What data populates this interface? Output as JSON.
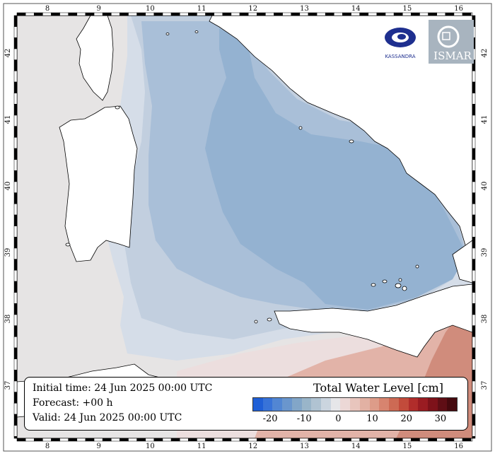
{
  "map": {
    "lon_ticks": [
      "8",
      "9",
      "10",
      "11",
      "12",
      "13",
      "14",
      "15",
      "16"
    ],
    "lat_ticks": [
      "37",
      "38",
      "39",
      "40",
      "41",
      "42"
    ],
    "colors": {
      "land": "#ffffff",
      "out_of_domain": "#e6e4e4",
      "sea_neutral": "#d5dde8",
      "sea_light": "#c2cfdf",
      "sea_mid": "#b3c6dc",
      "sea_deep": "#94b2d1",
      "sea_warm_light": "#ecdede",
      "sea_warm": "#e2b3a8",
      "sea_warm_strong": "#d08c7c",
      "sea_warm_max": "#c56a55"
    }
  },
  "logos": {
    "left_text": "KASSANDRA",
    "right_text": "ISMAR"
  },
  "info": {
    "initial_time": "Initial time: 24 Jun 2025 00:00 UTC",
    "forecast": "Forecast: +00 h",
    "valid": "Valid: 24 Jun 2025 00:00 UTC"
  },
  "colorbar": {
    "title": "Total Water Level [cm]",
    "ticks": [
      "-20",
      "-10",
      "0",
      "10",
      "20",
      "30"
    ],
    "colors": [
      "#1f5fd6",
      "#3873d8",
      "#5286d3",
      "#6a96cd",
      "#82a6c8",
      "#99b5c9",
      "#b0c3d2",
      "#cbd5df",
      "#e6e6e9",
      "#ecd8d6",
      "#e8c5bd",
      "#e2b1a3",
      "#dd9c89",
      "#d7846f",
      "#cd6a54",
      "#c24b3b",
      "#b12d2b",
      "#9a1c22",
      "#7e121a",
      "#5f0e15",
      "#45090e"
    ]
  }
}
